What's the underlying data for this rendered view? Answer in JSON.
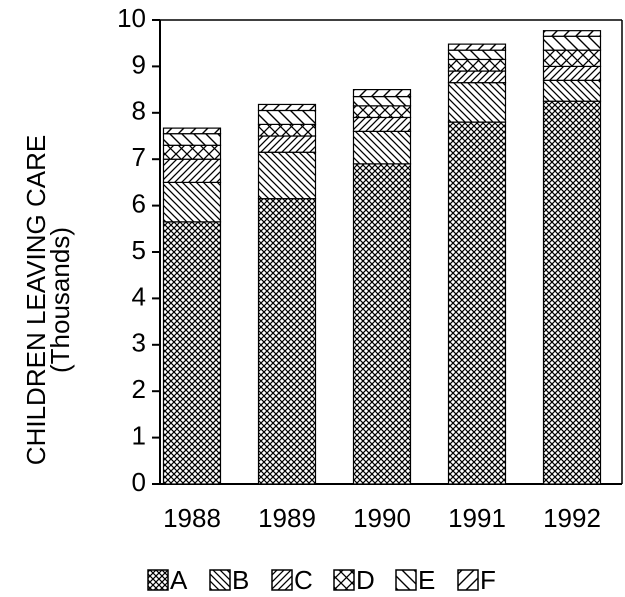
{
  "chart_data": {
    "type": "stacked_bar",
    "ylabel": "CHILDREN LEAVING CARE",
    "ylabel_sub": "(Thousands)",
    "categories": [
      "1988",
      "1989",
      "1990",
      "1991",
      "1992"
    ],
    "series": [
      {
        "name": "A",
        "color": "#000",
        "pattern": "crosshatch",
        "values": [
          5.65,
          6.15,
          6.9,
          7.8,
          8.25
        ]
      },
      {
        "name": "B",
        "color": "#000",
        "pattern": "back-diagonal",
        "values": [
          0.85,
          1.0,
          0.7,
          0.85,
          0.45
        ]
      },
      {
        "name": "C",
        "color": "#000",
        "pattern": "diagonal",
        "values": [
          0.5,
          0.35,
          0.3,
          0.25,
          0.3
        ]
      },
      {
        "name": "D",
        "color": "#000",
        "pattern": "cross",
        "values": [
          0.3,
          0.25,
          0.25,
          0.25,
          0.35
        ]
      },
      {
        "name": "E",
        "color": "#000",
        "pattern": "back-diagonal-wide",
        "values": [
          0.25,
          0.3,
          0.2,
          0.2,
          0.3
        ]
      },
      {
        "name": "F",
        "color": "#000",
        "pattern": "diagonal-wide",
        "values": [
          0.12,
          0.13,
          0.15,
          0.13,
          0.12
        ]
      }
    ],
    "ylim": [
      0,
      10
    ],
    "yticks": [
      0,
      1,
      2,
      3,
      4,
      5,
      6,
      7,
      8,
      9,
      10
    ]
  }
}
